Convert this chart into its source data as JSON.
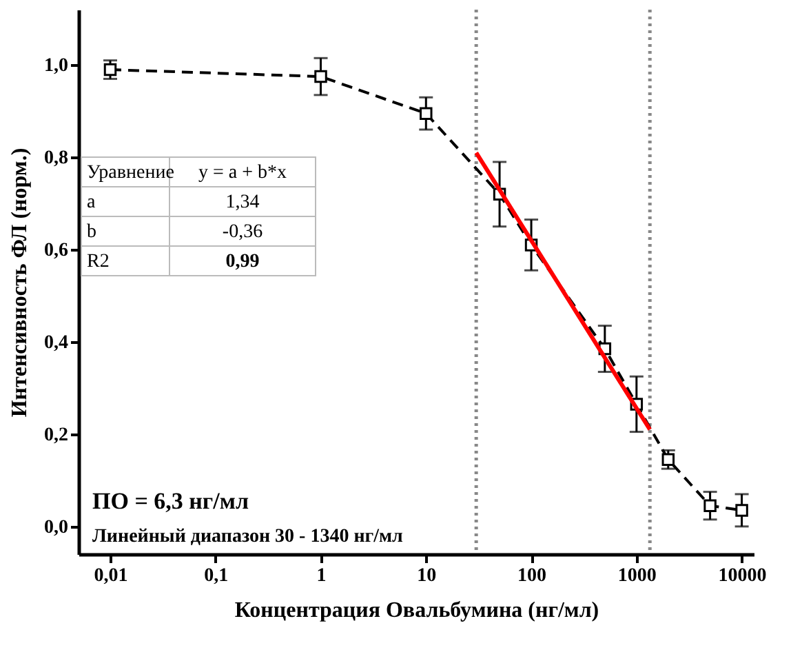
{
  "chart_data": {
    "type": "line",
    "xlabel": "Концентрация Овальбумина (нг/мл)",
    "ylabel": "Интенсивность ФЛ (норм.)",
    "log": "x",
    "grid": false,
    "marker": "square",
    "line_style": "dashed",
    "xlim": [
      0.005,
      13000
    ],
    "ylim": [
      -0.06,
      1.12
    ],
    "xticks": [
      {
        "value": 0.01,
        "label": "0,01"
      },
      {
        "value": 0.1,
        "label": "0,1"
      },
      1,
      10,
      100,
      1000,
      10000
    ],
    "yticks": [
      {
        "value": 0,
        "label": "0,0"
      },
      {
        "value": 0.2,
        "label": "0,2"
      },
      {
        "value": 0.4,
        "label": "0,4"
      },
      {
        "value": 0.6,
        "label": "0,6"
      },
      {
        "value": 0.8,
        "label": "0,8"
      },
      {
        "value": 1.0,
        "label": "1,0"
      }
    ],
    "series": [
      {
        "color": "#000000",
        "x": [
          0.01,
          1,
          10,
          50,
          100,
          500,
          1000,
          2000,
          5000,
          10000
        ],
        "values": [
          0.99,
          0.975,
          0.895,
          0.72,
          0.61,
          0.385,
          0.265,
          0.145,
          0.045,
          0.035
        ],
        "errors": [
          0.02,
          0.04,
          0.035,
          0.07,
          0.055,
          0.05,
          0.06,
          0.02,
          0.03,
          0.035
        ]
      },
      {
        "type": "line",
        "color": "#ff0000",
        "line_style": "solid",
        "marker": "none",
        "x": [
          30,
          1340
        ],
        "values": [
          0.81,
          0.21
        ]
      }
    ],
    "ref_lines": [
      {
        "axis": "x",
        "value": 30,
        "color": "#888888",
        "line_style": "dotted"
      },
      {
        "axis": "x",
        "value": 1340,
        "color": "#888888",
        "line_style": "dotted"
      }
    ],
    "annotations": [
      "Уравнение",
      "y = a + b*x",
      "a",
      "1,34",
      "b",
      "-0,36",
      "R2",
      "0,99",
      "ПО = 6,3 нг/мл",
      "Линейный диапазон 30 - 1340 нг/мл"
    ]
  }
}
